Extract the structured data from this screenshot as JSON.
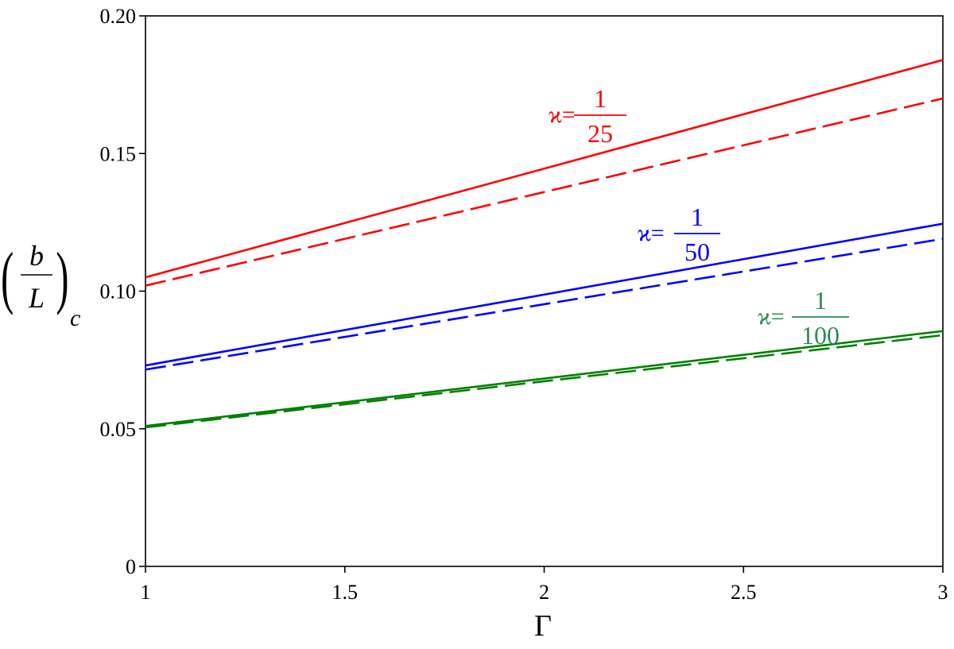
{
  "chart_data": {
    "type": "line",
    "xlabel": "Γ",
    "ylabel": {
      "numerator": "b",
      "denominator": "L",
      "subscript": "c"
    },
    "xlim": [
      1,
      3
    ],
    "ylim": [
      0,
      0.2
    ],
    "xticks": [
      1,
      1.5,
      2,
      2.5,
      3
    ],
    "xtick_labels": [
      "1",
      "1.5",
      "2",
      "2.5",
      "3"
    ],
    "yticks": [
      0,
      0.05,
      0.1,
      0.15,
      0.2
    ],
    "ytick_labels": [
      "0",
      "0.05",
      "0.10",
      "0.15",
      "0.20"
    ],
    "grid": false,
    "series": [
      {
        "color": "#ff0000",
        "style": "solid",
        "x": [
          1,
          3
        ],
        "values": [
          0.105,
          0.184
        ]
      },
      {
        "color": "#ff0000",
        "style": "dashed",
        "x": [
          1,
          3
        ],
        "values": [
          0.102,
          0.17
        ]
      },
      {
        "color": "#0000ff",
        "style": "solid",
        "x": [
          1,
          3
        ],
        "values": [
          0.073,
          0.1245
        ]
      },
      {
        "color": "#0000ff",
        "style": "dashed",
        "x": [
          1,
          3
        ],
        "values": [
          0.0715,
          0.119
        ]
      },
      {
        "color": "#008000",
        "style": "solid",
        "x": [
          1,
          3
        ],
        "values": [
          0.051,
          0.0855
        ]
      },
      {
        "color": "#008000",
        "style": "dashed",
        "x": [
          1,
          3
        ],
        "values": [
          0.0505,
          0.084
        ]
      }
    ],
    "annotations": [
      {
        "prefix": "ϰ=",
        "numerator": "1",
        "denominator": "25",
        "color": "#ff0000"
      },
      {
        "prefix": "ϰ=",
        "numerator": "1",
        "denominator": "50",
        "color": "#0000ff"
      },
      {
        "prefix": "ϰ=",
        "numerator": "1",
        "denominator": "100",
        "color": "#2e8b57"
      }
    ]
  }
}
